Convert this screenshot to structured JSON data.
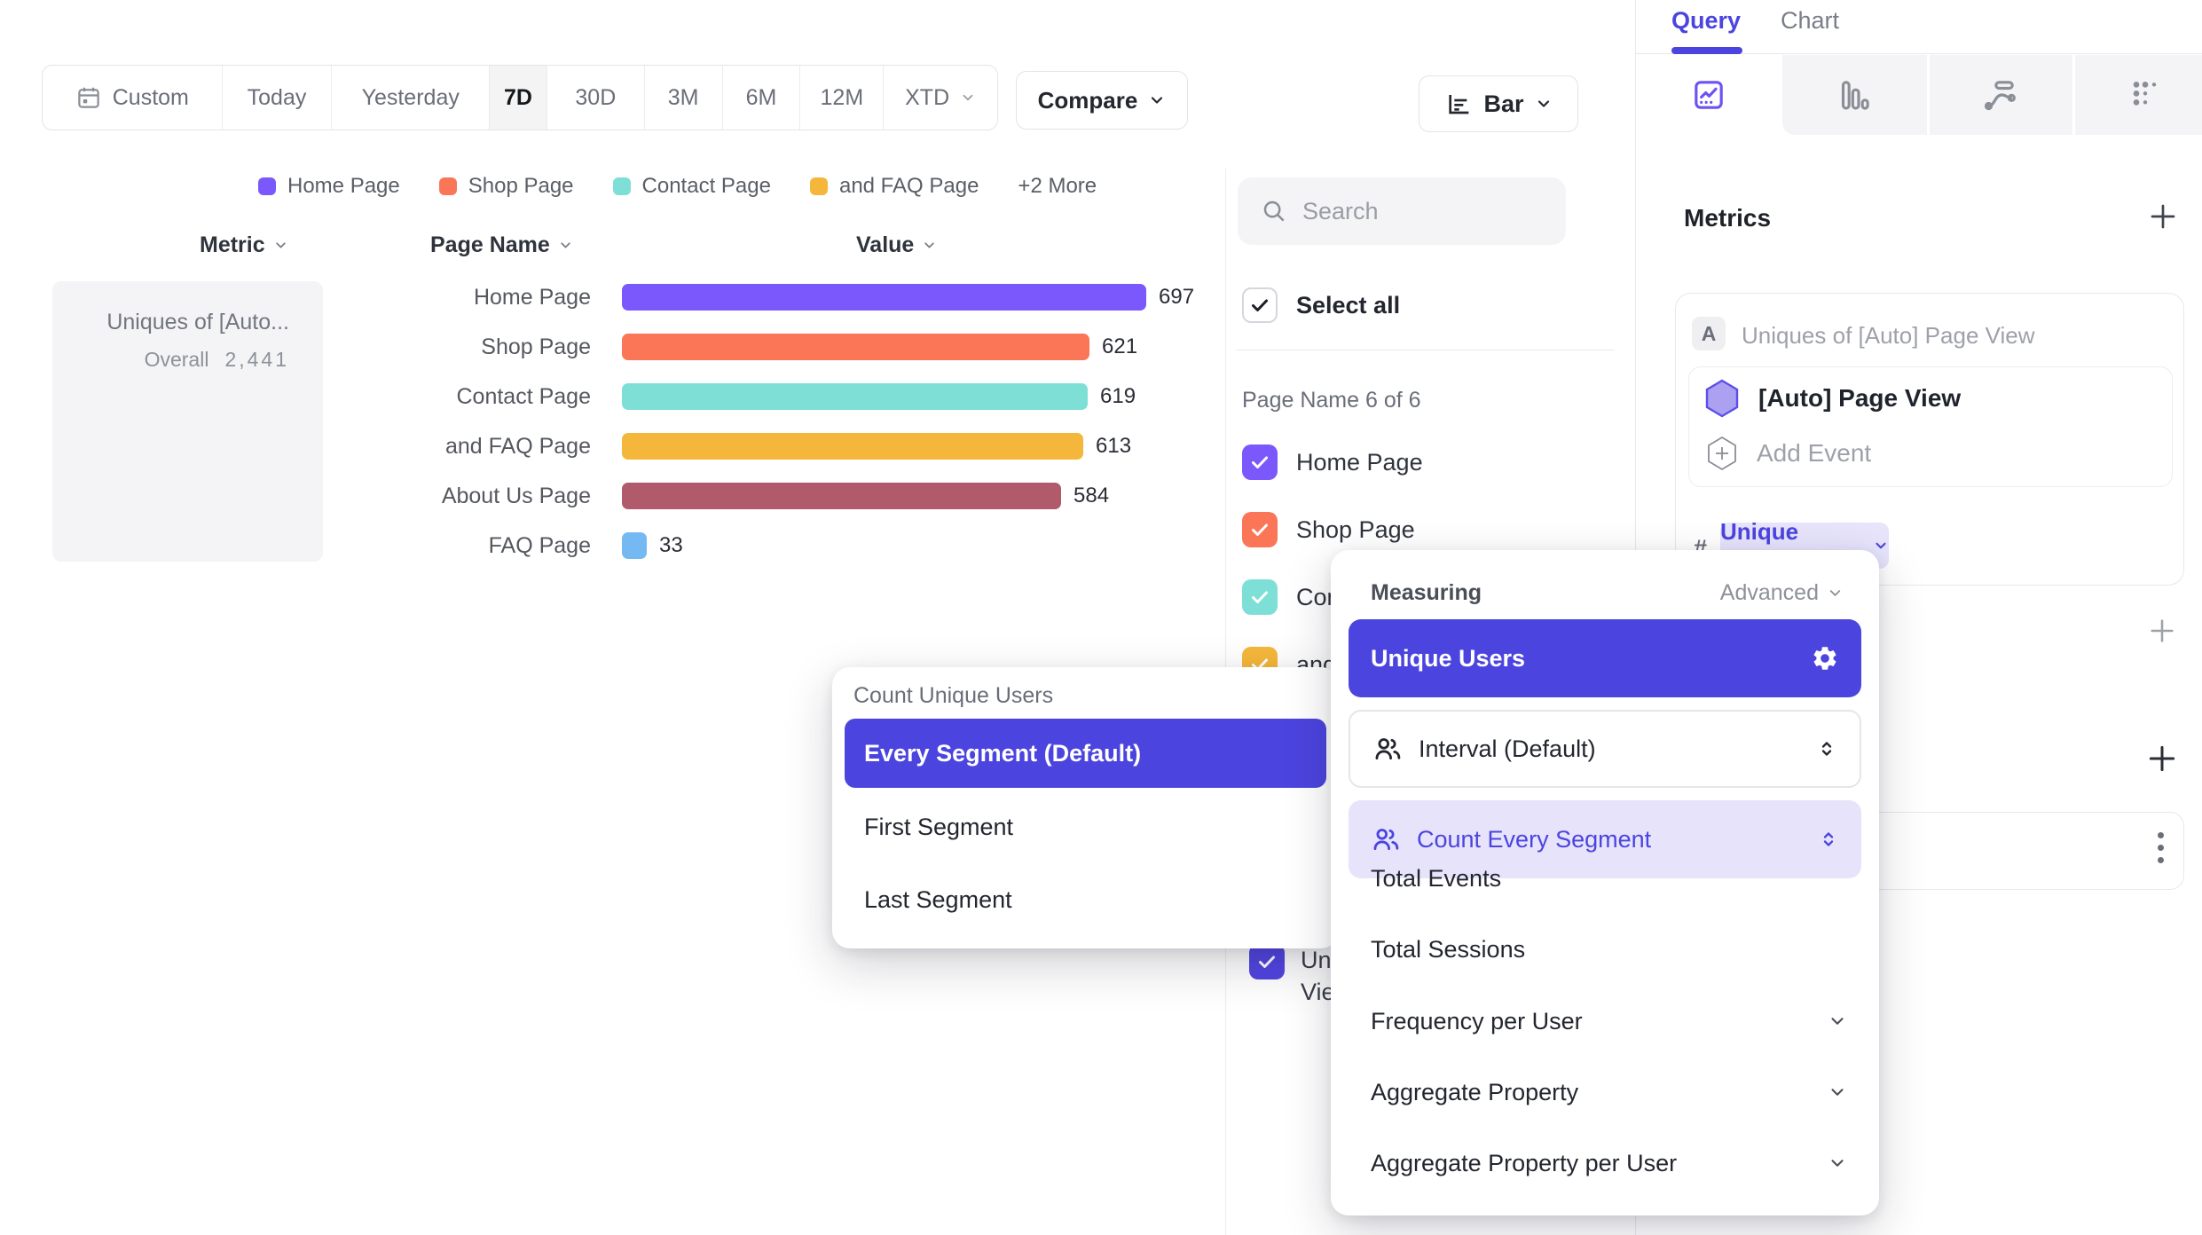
{
  "toolbar": {
    "date_ranges": [
      "Custom",
      "Today",
      "Yesterday",
      "7D",
      "30D",
      "3M",
      "6M",
      "12M",
      "XTD"
    ],
    "active_range": "7D",
    "compare_label": "Compare",
    "chart_type_label": "Bar"
  },
  "legend": {
    "items": [
      {
        "label": "Home Page",
        "color": "#7A58FC"
      },
      {
        "label": "Shop Page",
        "color": "#FB7557"
      },
      {
        "label": "Contact Page",
        "color": "#7EDFD6"
      },
      {
        "label": "and FAQ Page",
        "color": "#F5B73B"
      }
    ],
    "more_label": "+2 More"
  },
  "table_headers": {
    "metric": "Metric",
    "page_name": "Page Name",
    "value": "Value"
  },
  "metric_cell": {
    "title": "Uniques of [Auto...",
    "overall_label": "Overall",
    "overall_value": "2,441"
  },
  "chart_data": {
    "type": "bar",
    "orientation": "horizontal",
    "title": "Uniques of [Auto] Page View",
    "categories": [
      "Home Page",
      "Shop Page",
      "Contact Page",
      "and FAQ Page",
      "About Us Page",
      "FAQ Page"
    ],
    "values": [
      697,
      621,
      619,
      613,
      584,
      33
    ],
    "colors": [
      "#7A58FC",
      "#FB7557",
      "#7EDFD6",
      "#F5B73B",
      "#B05A6C",
      "#74B9F2"
    ],
    "overall_total": "2,441",
    "x_max": 697
  },
  "filter_panel": {
    "search_placeholder": "Search",
    "select_all_label": "Select all",
    "section_label": "Page Name 6 of 6",
    "items": [
      {
        "label": "Home Page",
        "color": "#7A58FC"
      },
      {
        "label": "Shop Page",
        "color": "#FB7557"
      },
      {
        "label": "Contact Page",
        "color": "#7EDFD6"
      },
      {
        "label": "and FAQ Page",
        "color": "#F5B73B"
      }
    ],
    "metric_item": {
      "label": "Uniques of [Auto] Page View",
      "color": "#5145E1"
    }
  },
  "query_panel": {
    "tab_query": "Query",
    "tab_chart": "Chart",
    "metrics_heading": "Metrics",
    "metric_badge": "A",
    "metric_title": "Uniques of [Auto] Page View",
    "event_name": "[Auto] Page View",
    "add_event_label": "Add Event",
    "hash_symbol": "#",
    "measurement_pill": "Unique Users"
  },
  "count_popover": {
    "title": "Count Unique Users",
    "selected_option": "Every Segment (Default)",
    "options": [
      "First Segment",
      "Last Segment"
    ]
  },
  "measuring_popover": {
    "title": "Measuring",
    "advanced_label": "Advanced",
    "selected_option": "Unique Users",
    "interval_option": "Interval (Default)",
    "segment_option": "Count Every Segment",
    "plain_options": [
      "Total Events",
      "Total Sessions"
    ],
    "expandable_options": [
      "Frequency per User",
      "Aggregate Property",
      "Aggregate Property per User"
    ]
  }
}
